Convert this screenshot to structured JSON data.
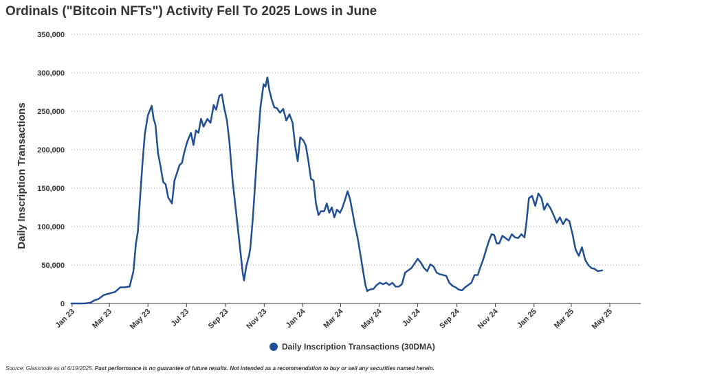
{
  "chart_data": {
    "type": "line",
    "title": "Ordinals (\"Bitcoin NFTs\") Activity Fell To 2025 Lows in June",
    "ylabel": "Daily Inscription Transactions",
    "xlabel": "",
    "ylim": [
      0,
      350000
    ],
    "yticks": [
      "0",
      "50,000",
      "100,000",
      "150,000",
      "200,000",
      "250,000",
      "300,000",
      "350,000"
    ],
    "yticks_values": [
      0,
      50000,
      100000,
      150000,
      200000,
      250000,
      300000,
      350000
    ],
    "xticks": [
      "Jan 23",
      "Mar 23",
      "May 23",
      "Jul 23",
      "Sep 23",
      "Nov 23",
      "Jan 24",
      "Mar 24",
      "May 24",
      "Jul 24",
      "Sep 24",
      "Nov 24",
      "Jan 25",
      "Mar 25",
      "May 25"
    ],
    "xticks_dates": [
      "2023-01-01",
      "2023-03-01",
      "2023-05-01",
      "2023-07-01",
      "2023-09-01",
      "2023-11-01",
      "2024-01-01",
      "2024-03-01",
      "2024-05-01",
      "2024-07-01",
      "2024-09-01",
      "2024-11-01",
      "2025-01-01",
      "2025-03-01",
      "2025-05-01"
    ],
    "xlim": [
      "2022-12-31",
      "2025-06-19"
    ],
    "grid": "horizontal-dotted",
    "legend": "bottom-center",
    "color": "#1f4e96",
    "series": [
      {
        "name": "Daily Inscription Transactions (30DMA)",
        "points": [
          [
            "2022-12-31",
            0
          ],
          [
            "2023-01-20",
            0
          ],
          [
            "2023-01-30",
            1000
          ],
          [
            "2023-02-05",
            4000
          ],
          [
            "2023-02-12",
            6000
          ],
          [
            "2023-02-20",
            11000
          ],
          [
            "2023-03-01",
            13000
          ],
          [
            "2023-03-10",
            15000
          ],
          [
            "2023-03-18",
            21000
          ],
          [
            "2023-03-25",
            21000
          ],
          [
            "2023-04-02",
            22000
          ],
          [
            "2023-04-08",
            42000
          ],
          [
            "2023-04-12",
            78000
          ],
          [
            "2023-04-15",
            93000
          ],
          [
            "2023-04-18",
            130000
          ],
          [
            "2023-04-22",
            178000
          ],
          [
            "2023-04-26",
            220000
          ],
          [
            "2023-05-01",
            245000
          ],
          [
            "2023-05-07",
            257000
          ],
          [
            "2023-05-10",
            240000
          ],
          [
            "2023-05-13",
            232000
          ],
          [
            "2023-05-17",
            195000
          ],
          [
            "2023-05-21",
            178000
          ],
          [
            "2023-05-25",
            158000
          ],
          [
            "2023-05-29",
            155000
          ],
          [
            "2023-06-02",
            138000
          ],
          [
            "2023-06-08",
            130000
          ],
          [
            "2023-06-12",
            160000
          ],
          [
            "2023-06-16",
            170000
          ],
          [
            "2023-06-20",
            180000
          ],
          [
            "2023-06-24",
            183000
          ],
          [
            "2023-06-27",
            195000
          ],
          [
            "2023-07-02",
            210000
          ],
          [
            "2023-07-08",
            222000
          ],
          [
            "2023-07-12",
            206000
          ],
          [
            "2023-07-16",
            225000
          ],
          [
            "2023-07-20",
            222000
          ],
          [
            "2023-07-24",
            240000
          ],
          [
            "2023-07-28",
            230000
          ],
          [
            "2023-08-03",
            240000
          ],
          [
            "2023-08-08",
            235000
          ],
          [
            "2023-08-13",
            258000
          ],
          [
            "2023-08-17",
            252000
          ],
          [
            "2023-08-22",
            270000
          ],
          [
            "2023-08-26",
            272000
          ],
          [
            "2023-08-30",
            253000
          ],
          [
            "2023-09-03",
            238000
          ],
          [
            "2023-09-07",
            210000
          ],
          [
            "2023-09-12",
            160000
          ],
          [
            "2023-09-16",
            130000
          ],
          [
            "2023-09-20",
            100000
          ],
          [
            "2023-09-24",
            70000
          ],
          [
            "2023-09-28",
            40000
          ],
          [
            "2023-09-30",
            30000
          ],
          [
            "2023-10-04",
            50000
          ],
          [
            "2023-10-08",
            62000
          ],
          [
            "2023-10-10",
            72000
          ],
          [
            "2023-10-14",
            110000
          ],
          [
            "2023-10-18",
            160000
          ],
          [
            "2023-10-22",
            210000
          ],
          [
            "2023-10-26",
            255000
          ],
          [
            "2023-10-31",
            285000
          ],
          [
            "2023-11-03",
            282000
          ],
          [
            "2023-11-06",
            294000
          ],
          [
            "2023-11-09",
            278000
          ],
          [
            "2023-11-13",
            265000
          ],
          [
            "2023-11-17",
            255000
          ],
          [
            "2023-11-21",
            254000
          ],
          [
            "2023-11-26",
            248000
          ],
          [
            "2023-12-01",
            253000
          ],
          [
            "2023-12-06",
            238000
          ],
          [
            "2023-12-11",
            246000
          ],
          [
            "2023-12-16",
            235000
          ],
          [
            "2023-12-20",
            205000
          ],
          [
            "2023-12-24",
            185000
          ],
          [
            "2023-12-28",
            216000
          ],
          [
            "2024-01-02",
            212000
          ],
          [
            "2024-01-06",
            205000
          ],
          [
            "2024-01-10",
            185000
          ],
          [
            "2024-01-14",
            162000
          ],
          [
            "2024-01-18",
            160000
          ],
          [
            "2024-01-22",
            130000
          ],
          [
            "2024-01-26",
            115000
          ],
          [
            "2024-01-30",
            120000
          ],
          [
            "2024-02-04",
            120000
          ],
          [
            "2024-02-08",
            130000
          ],
          [
            "2024-02-12",
            118000
          ],
          [
            "2024-02-16",
            125000
          ],
          [
            "2024-02-20",
            112000
          ],
          [
            "2024-02-24",
            122000
          ],
          [
            "2024-02-29",
            118000
          ],
          [
            "2024-03-04",
            125000
          ],
          [
            "2024-03-08",
            135000
          ],
          [
            "2024-03-12",
            146000
          ],
          [
            "2024-03-16",
            135000
          ],
          [
            "2024-03-20",
            118000
          ],
          [
            "2024-03-24",
            100000
          ],
          [
            "2024-03-28",
            85000
          ],
          [
            "2024-04-01",
            65000
          ],
          [
            "2024-04-05",
            45000
          ],
          [
            "2024-04-09",
            25000
          ],
          [
            "2024-04-12",
            16000
          ],
          [
            "2024-04-16",
            18000
          ],
          [
            "2024-04-22",
            19000
          ],
          [
            "2024-04-27",
            24000
          ],
          [
            "2024-05-02",
            27000
          ],
          [
            "2024-05-07",
            25000
          ],
          [
            "2024-05-12",
            27000
          ],
          [
            "2024-05-17",
            24000
          ],
          [
            "2024-05-22",
            27000
          ],
          [
            "2024-05-27",
            22000
          ],
          [
            "2024-06-01",
            22000
          ],
          [
            "2024-06-06",
            25000
          ],
          [
            "2024-06-11",
            40000
          ],
          [
            "2024-06-16",
            43000
          ],
          [
            "2024-06-21",
            46000
          ],
          [
            "2024-06-26",
            52000
          ],
          [
            "2024-07-01",
            58000
          ],
          [
            "2024-07-06",
            53000
          ],
          [
            "2024-07-11",
            46000
          ],
          [
            "2024-07-16",
            42000
          ],
          [
            "2024-07-21",
            51000
          ],
          [
            "2024-07-26",
            48000
          ],
          [
            "2024-07-31",
            40000
          ],
          [
            "2024-08-05",
            38000
          ],
          [
            "2024-08-10",
            37000
          ],
          [
            "2024-08-15",
            36000
          ],
          [
            "2024-08-20",
            27000
          ],
          [
            "2024-08-25",
            23000
          ],
          [
            "2024-08-30",
            21000
          ],
          [
            "2024-09-04",
            18000
          ],
          [
            "2024-09-09",
            17000
          ],
          [
            "2024-09-14",
            21000
          ],
          [
            "2024-09-19",
            24000
          ],
          [
            "2024-09-24",
            27000
          ],
          [
            "2024-09-29",
            37000
          ],
          [
            "2024-10-04",
            37000
          ],
          [
            "2024-10-08",
            47000
          ],
          [
            "2024-10-13",
            58000
          ],
          [
            "2024-10-18",
            72000
          ],
          [
            "2024-10-22",
            82000
          ],
          [
            "2024-10-26",
            90000
          ],
          [
            "2024-10-30",
            89000
          ],
          [
            "2024-11-03",
            78000
          ],
          [
            "2024-11-07",
            78000
          ],
          [
            "2024-11-12",
            88000
          ],
          [
            "2024-11-17",
            85000
          ],
          [
            "2024-11-22",
            82000
          ],
          [
            "2024-11-27",
            90000
          ],
          [
            "2024-12-02",
            86000
          ],
          [
            "2024-12-07",
            85000
          ],
          [
            "2024-12-12",
            90000
          ],
          [
            "2024-12-17",
            86000
          ],
          [
            "2024-12-20",
            105000
          ],
          [
            "2024-12-24",
            137000
          ],
          [
            "2024-12-29",
            140000
          ],
          [
            "2025-01-03",
            127000
          ],
          [
            "2025-01-08",
            143000
          ],
          [
            "2025-01-13",
            137000
          ],
          [
            "2025-01-17",
            122000
          ],
          [
            "2025-01-22",
            130000
          ],
          [
            "2025-01-27",
            124000
          ],
          [
            "2025-02-01",
            115000
          ],
          [
            "2025-02-06",
            105000
          ],
          [
            "2025-02-11",
            112000
          ],
          [
            "2025-02-16",
            103000
          ],
          [
            "2025-02-21",
            110000
          ],
          [
            "2025-02-26",
            107000
          ],
          [
            "2025-03-03",
            90000
          ],
          [
            "2025-03-08",
            70000
          ],
          [
            "2025-03-13",
            62000
          ],
          [
            "2025-03-18",
            73000
          ],
          [
            "2025-03-23",
            57000
          ],
          [
            "2025-03-28",
            50000
          ],
          [
            "2025-04-02",
            46000
          ],
          [
            "2025-04-07",
            45000
          ],
          [
            "2025-04-12",
            42000
          ],
          [
            "2025-04-19",
            43000
          ]
        ]
      }
    ]
  },
  "page": {
    "title": "Ordinals (\"Bitcoin NFTs\") Activity Fell To 2025 Lows in June",
    "legend_label": "Daily Inscription Transactions (30DMA)",
    "source_text": "Source: Glassnode as of 6/19/2025.",
    "disclaimer_text": "Past performance is no guarantee of future results. Not intended as a recommendation to buy or sell any securities named herein."
  }
}
